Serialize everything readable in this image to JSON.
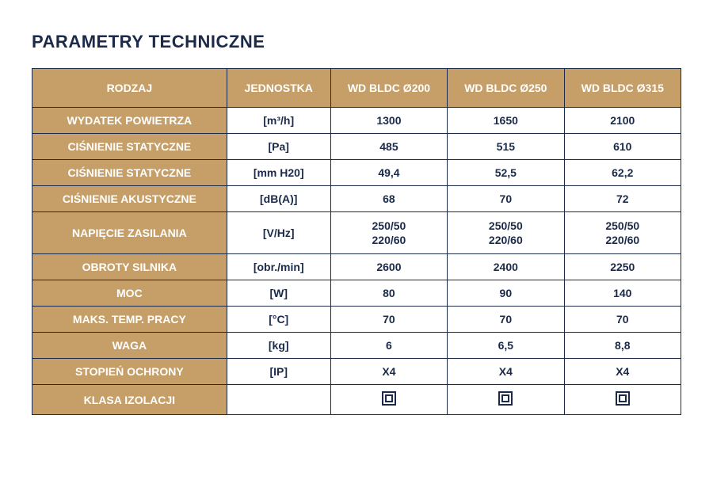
{
  "title": "PARAMETRY TECHNICZNE",
  "colors": {
    "accent_bg": "#c69f68",
    "text_dark": "#1b2a49",
    "border": "#1b2a49",
    "white": "#ffffff"
  },
  "table": {
    "header": {
      "label": "RODZAJ",
      "unit": "JEDNOSTKA",
      "col1": "WD BLDC Ø200",
      "col2": "WD BLDC Ø250",
      "col3": "WD BLDC Ø315"
    },
    "rows": [
      {
        "label": "WYDATEK POWIETRZA",
        "unit": "[m³/h]",
        "v1": "1300",
        "v2": "1650",
        "v3": "2100"
      },
      {
        "label": "CIŚNIENIE STATYCZNE",
        "unit": "[Pa]",
        "v1": "485",
        "v2": "515",
        "v3": "610"
      },
      {
        "label": "CIŚNIENIE STATYCZNE",
        "unit": "[mm H20]",
        "v1": "49,4",
        "v2": "52,5",
        "v3": "62,2"
      },
      {
        "label": "CIŚNIENIE AKUSTYCZNE",
        "unit": "[dB(A)]",
        "v1": "68",
        "v2": "70",
        "v3": "72"
      },
      {
        "label": "NAPIĘCIE ZASILANIA",
        "unit": "[V/Hz]",
        "v1": "250/50\n220/60",
        "v2": "250/50\n220/60",
        "v3": "250/50\n220/60"
      },
      {
        "label": "OBROTY SILNIKA",
        "unit": "[obr./min]",
        "v1": "2600",
        "v2": "2400",
        "v3": "2250"
      },
      {
        "label": "MOC",
        "unit": "[W]",
        "v1": "80",
        "v2": "90",
        "v3": "140"
      },
      {
        "label": "MAKS. TEMP. PRACY",
        "unit": "[°C]",
        "v1": "70",
        "v2": "70",
        "v3": "70"
      },
      {
        "label": "WAGA",
        "unit": "[kg]",
        "v1": "6",
        "v2": "6,5",
        "v3": "8,8"
      },
      {
        "label": "STOPIEŃ OCHRONY",
        "unit": "[IP]",
        "v1": "X4",
        "v2": "X4",
        "v3": "X4"
      },
      {
        "label": "KLASA IZOLACJI",
        "unit": "",
        "v1": "__ICON__",
        "v2": "__ICON__",
        "v3": "__ICON__"
      }
    ]
  }
}
